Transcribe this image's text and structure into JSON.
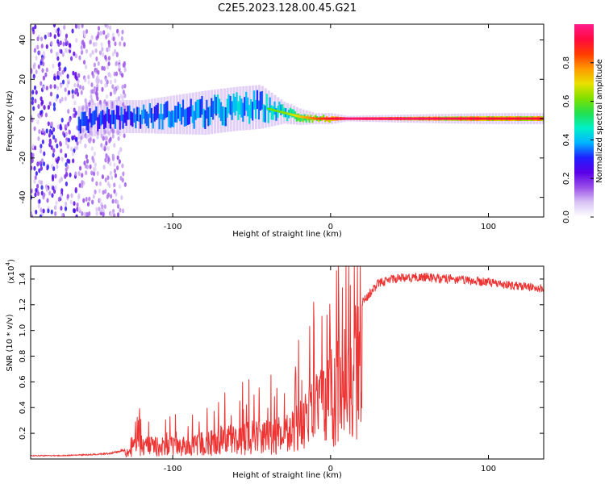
{
  "title": "C2E5.2023.128.00.45.G21",
  "colors": {
    "snr_line": "#ee3333",
    "frame": "#000000"
  },
  "colorbar": {
    "label": "Normalized spectral amplitude",
    "ticks": [
      "0.0",
      "0.2",
      "0.4",
      "0.6",
      "0.8"
    ],
    "tick_values": [
      0.0,
      0.2,
      0.4,
      0.6,
      0.8
    ],
    "range": [
      0,
      1
    ],
    "colormap": [
      "#ffffff",
      "#d8c4f4",
      "#9a4ee8",
      "#5a00e8",
      "#1f1fff",
      "#00b4ff",
      "#00f0c8",
      "#22e050",
      "#7fe000",
      "#e8e000",
      "#ff9a00",
      "#ff3a00",
      "#ff0a40",
      "#ff1a8a"
    ]
  },
  "chart_data": [
    {
      "type": "heatmap",
      "title": "C2E5.2023.128.00.45.G21",
      "xlabel": "Height of straight line (km)",
      "ylabel": "Frequency (Hz)",
      "xlim": [
        -190,
        135
      ],
      "ylim": [
        -50,
        48
      ],
      "xticks": [
        -100,
        0,
        100
      ],
      "xtick_labels": [
        "-100",
        "0",
        "100"
      ],
      "yticks": [
        -40,
        -20,
        0,
        20,
        40
      ],
      "ytick_labels": [
        "-40",
        "-20",
        "0",
        "20",
        "40"
      ],
      "z_range": [
        0,
        1
      ],
      "ridge": {
        "x": [
          -160,
          -140,
          -120,
          -100,
          -80,
          -60,
          -45,
          -30,
          -20,
          -10,
          0,
          10,
          50,
          100,
          135
        ],
        "center_hz": [
          -2,
          1,
          1,
          2,
          3,
          5,
          6,
          3,
          1,
          0,
          0,
          0,
          0,
          0,
          0
        ],
        "halfwidth_hz": [
          6,
          6,
          6,
          7,
          8,
          8,
          8,
          4,
          3,
          2,
          2,
          1,
          1.5,
          2,
          2
        ],
        "peak_amplitude": [
          0.35,
          0.35,
          0.38,
          0.4,
          0.45,
          0.45,
          0.45,
          0.5,
          0.6,
          0.7,
          0.8,
          0.85,
          0.85,
          0.8,
          0.8
        ]
      },
      "noise_region_x": [
        -190,
        -130
      ]
    },
    {
      "type": "line",
      "xlabel": "Height of straight line (km)",
      "ylabel": "SNR (10 * v/v)",
      "y_multiplier": "(x10",
      "y_multiplier_exp": "4",
      "y_multiplier_close": ")",
      "xlim": [
        -190,
        135
      ],
      "ylim": [
        0,
        15000
      ],
      "xticks": [
        -100,
        0,
        100
      ],
      "xtick_labels": [
        "-100",
        "0",
        "100"
      ],
      "yticks": [
        2000,
        4000,
        6000,
        8000,
        10000,
        12000,
        14000
      ],
      "ytick_labels": [
        "0.2",
        "0.4",
        "0.6",
        "0.8",
        "1.0",
        "1.2",
        "1.4"
      ],
      "series": [
        {
          "x": [
            -190,
            -170,
            -150,
            -140,
            -130,
            -125,
            -120,
            -110,
            -100,
            -90,
            -80,
            -70,
            -60,
            -50,
            -40,
            -30,
            -25,
            -20,
            -15,
            -10,
            -5,
            0,
            5,
            10,
            15,
            20,
            25,
            30,
            40,
            50,
            60,
            70,
            80,
            90,
            100,
            110,
            120,
            135
          ],
          "values": [
            300,
            300,
            400,
            500,
            800,
            1500,
            2000,
            1700,
            1700,
            1900,
            2200,
            2600,
            2800,
            3000,
            3200,
            3400,
            3800,
            4500,
            5500,
            6500,
            7500,
            8500,
            9500,
            10500,
            12000,
            12500,
            13200,
            14000,
            14400,
            14500,
            14500,
            14400,
            14300,
            14200,
            14100,
            13900,
            13800,
            13600
          ]
        }
      ]
    }
  ]
}
